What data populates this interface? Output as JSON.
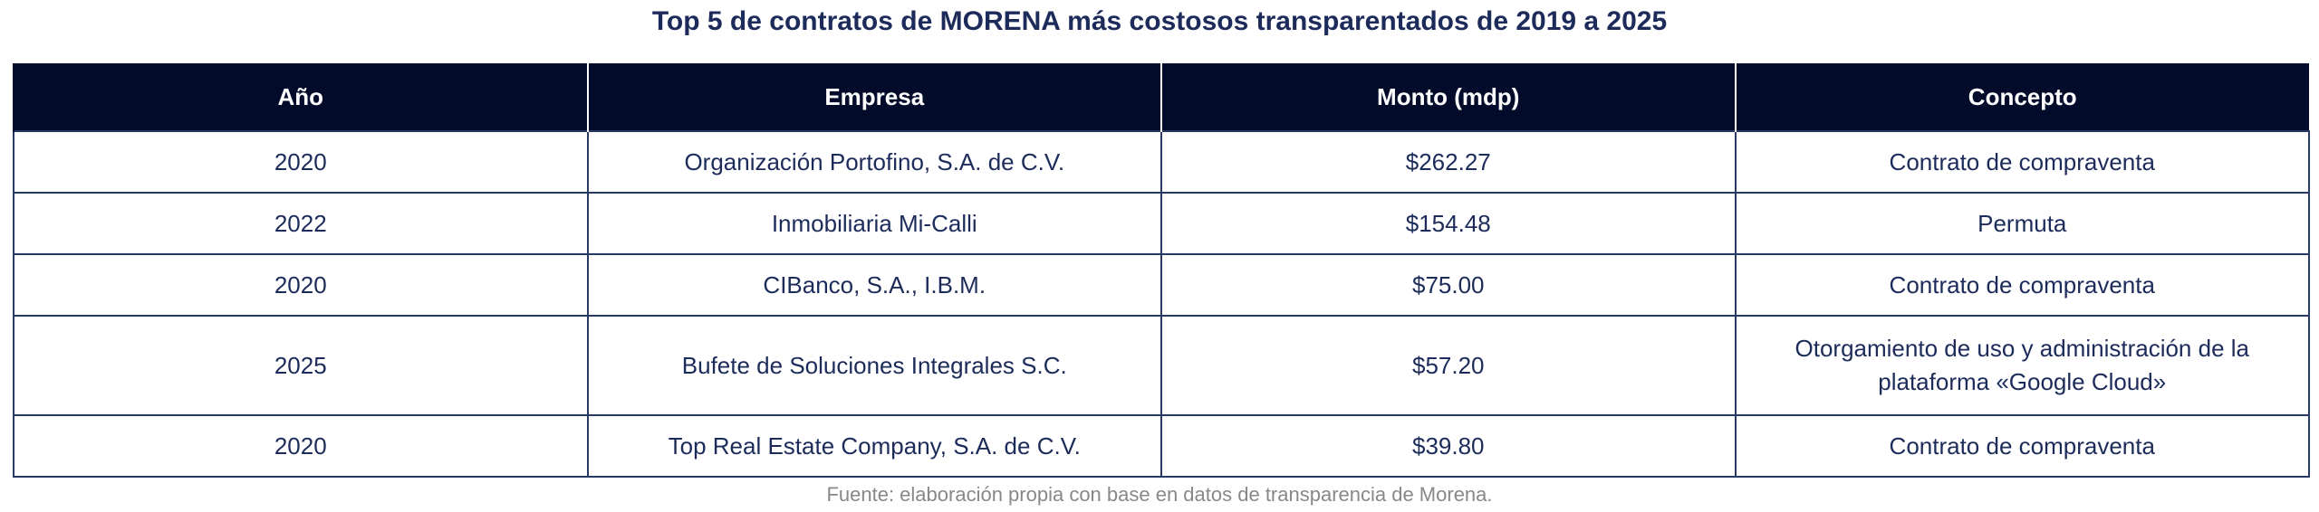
{
  "title": "Top 5 de contratos de MORENA más costosos transparentados de 2019 a 2025",
  "table": {
    "headers": [
      "Año",
      "Empresa",
      "Monto (mdp)",
      "Concepto"
    ],
    "rows": [
      [
        "2020",
        "Organización Portofino, S.A. de C.V.",
        "$262.27",
        "Contrato de compraventa"
      ],
      [
        "2022",
        "Inmobiliaria Mi-Calli",
        "$154.48",
        "Permuta"
      ],
      [
        "2020",
        "CIBanco, S.A., I.B.M.",
        "$75.00",
        "Contrato de compraventa"
      ],
      [
        "2025",
        "Bufete de Soluciones Integrales S.C.",
        "$57.20",
        "Otorgamiento de uso y administración de la plataforma «Google Cloud»"
      ],
      [
        "2020",
        "Top Real Estate Company, S.A. de C.V.",
        "$39.80",
        "Contrato de compraventa"
      ]
    ]
  },
  "source": "Fuente: elaboración propia con base en datos de transparencia de Morena.",
  "colors": {
    "header_bg": "#020b2a",
    "header_text": "#ffffff",
    "body_text": "#1c2b5a",
    "border": "#2a3a66",
    "source_text": "#888888"
  }
}
